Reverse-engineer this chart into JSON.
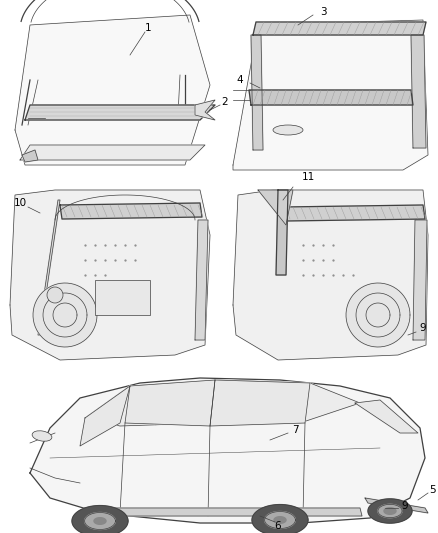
{
  "background_color": "#ffffff",
  "text_color": "#000000",
  "line_color": "#404040",
  "fig_width": 4.38,
  "fig_height": 5.33,
  "dpi": 100,
  "font_size_label": 7.5
}
